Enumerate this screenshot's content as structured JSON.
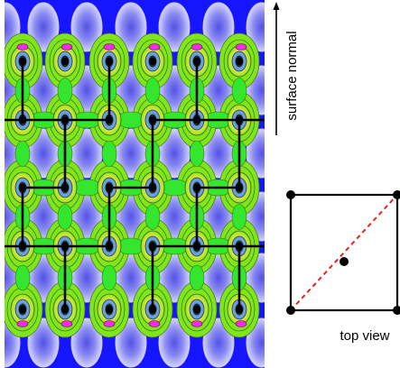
{
  "labels": {
    "axis_label": "surface normal",
    "inset_label": "top view"
  },
  "colors": {
    "map_background": "#1515ff",
    "basin": "#7c7cf0",
    "basin_edge": "#c8c8ff",
    "valence": "#7fe61e",
    "valence_bright": "#35e62e",
    "core": "#e8ee3c",
    "peak": "#ee2ee0",
    "core_dark": "#1e2a40",
    "bond": "#000000",
    "diagonal": "#e8221e"
  },
  "icons": {
    "axis_arrow": "up-arrow-icon",
    "atom": "filled-circle-icon"
  }
}
